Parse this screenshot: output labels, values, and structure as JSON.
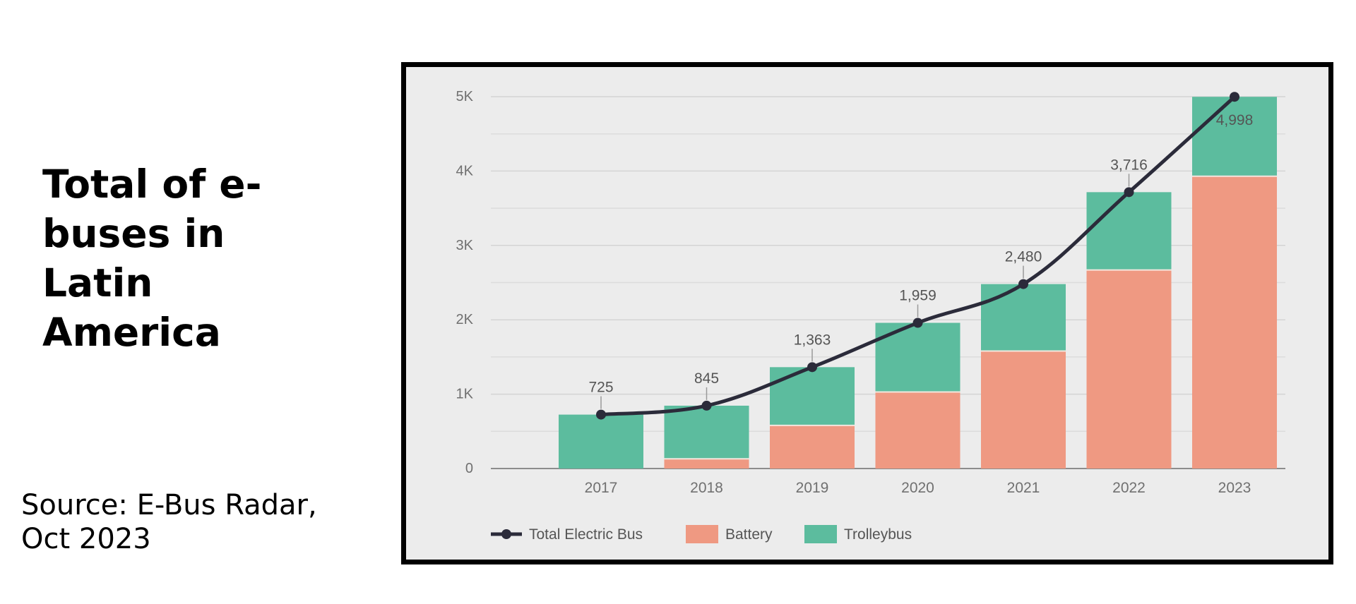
{
  "title": "Total of e-buses in Latin America",
  "source": "Source: E-Bus Radar, Oct 2023",
  "colors": {
    "battery": "#ef9982",
    "trolleybus": "#5cbc9e",
    "line": "#2b2b3a"
  },
  "chart_data": {
    "type": "bar",
    "stacked": true,
    "categories": [
      "2017",
      "2018",
      "2019",
      "2020",
      "2021",
      "2022",
      "2023"
    ],
    "series": [
      {
        "name": "Battery",
        "type": "bar",
        "values": [
          0,
          130,
          580,
          1030,
          1580,
          2670,
          3930
        ]
      },
      {
        "name": "Trolleybus",
        "type": "bar",
        "values": [
          725,
          715,
          783,
          929,
          900,
          1046,
          1068
        ]
      },
      {
        "name": "Total Electric Bus",
        "type": "line",
        "values": [
          725,
          845,
          1363,
          1959,
          2480,
          3716,
          4998
        ]
      }
    ],
    "data_labels": [
      "725",
      "845",
      "1,363",
      "1,959",
      "2,480",
      "3,716",
      "4,998"
    ],
    "yticks": [
      0,
      1000,
      2000,
      3000,
      4000,
      5000
    ],
    "ytick_labels": [
      "0",
      "1K",
      "2K",
      "3K",
      "4K",
      "5K"
    ],
    "ylim": [
      0,
      5000
    ],
    "legend": [
      "Total Electric Bus",
      "Battery",
      "Trolleybus"
    ],
    "legend_position": "bottom-left",
    "grid": true
  }
}
